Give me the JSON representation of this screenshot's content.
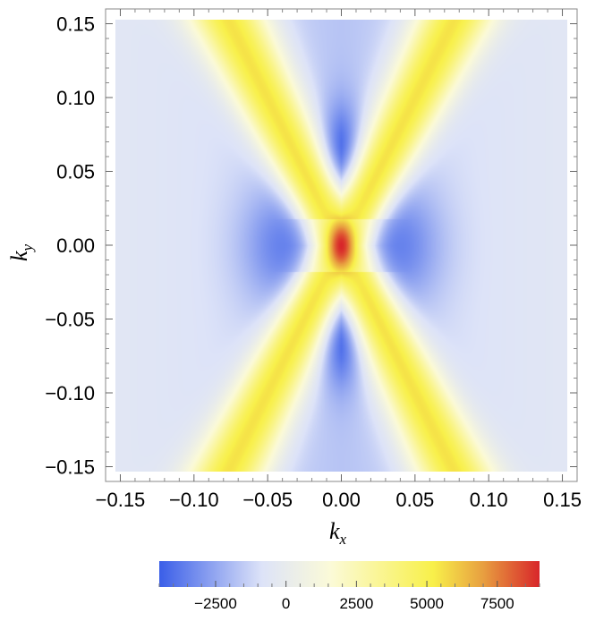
{
  "chart_data": {
    "type": "heatmap",
    "title": "",
    "xlabel": "k",
    "xlabel_sub": "x",
    "ylabel": "k",
    "ylabel_sub": "y",
    "xlim": [
      -0.16,
      0.16
    ],
    "ylim": [
      -0.16,
      0.16
    ],
    "x_ticks": [
      -0.15,
      -0.1,
      -0.05,
      0.0,
      0.05,
      0.1,
      0.15
    ],
    "x_tick_labels": [
      "−0.15",
      "−0.10",
      "−0.05",
      "0.00",
      "0.05",
      "0.10",
      "0.15"
    ],
    "y_ticks": [
      0.15,
      0.1,
      0.05,
      0.0,
      -0.05,
      -0.1,
      -0.15
    ],
    "y_tick_labels": [
      "0.15",
      "0.10",
      "0.05",
      "0.00",
      "−0.05",
      "−0.10",
      "−0.15"
    ],
    "field": {
      "description_of_pattern": "X-shaped positive ridges crossing at origin; negative lobes above/below center; strong positive peak at origin",
      "branch_slope": 2.0,
      "ridge_value": 5500,
      "center_peak": 9000,
      "lobe_min": -4500,
      "background": -1200
    },
    "colorbar": {
      "min": -4500,
      "max": 9000,
      "ticks": [
        -2500,
        0,
        2500,
        5000,
        7500
      ],
      "tick_labels": [
        "−2500",
        "0",
        "2500",
        "5000",
        "7500"
      ],
      "colors": [
        "#3a5ee8",
        "#dde3f8",
        "#fbfad8",
        "#f8f04a",
        "#e8a040",
        "#d8262a"
      ],
      "stops": [
        0.0,
        0.27,
        0.45,
        0.72,
        0.85,
        1.0
      ]
    },
    "grid": false,
    "legend": "none"
  }
}
